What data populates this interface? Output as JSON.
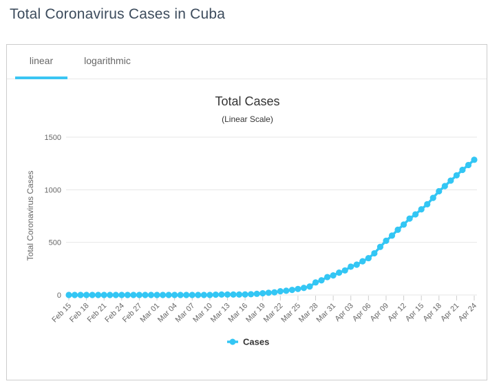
{
  "page": {
    "title": "Total Coronavirus Cases in Cuba"
  },
  "toolbar": {
    "tabs": [
      {
        "label": "linear",
        "active": true
      },
      {
        "label": "logarithmic",
        "active": false
      }
    ]
  },
  "colors": {
    "accent_cyan": "#3bc5f3",
    "series": "#33c6f4",
    "gridline": "#e6e6e6",
    "axis_text": "#666666",
    "title_text": "#3c4b5c"
  },
  "chart_data": {
    "type": "line",
    "title": "Total Cases",
    "subtitle": "(Linear Scale)",
    "xlabel": "",
    "ylabel": "Total Coronavirus Cases",
    "ylim": [
      0,
      1500
    ],
    "yticks": [
      0,
      500,
      1000,
      1500
    ],
    "grid": true,
    "legend_position": "bottom-center",
    "categories": [
      "Feb 15",
      "Feb 16",
      "Feb 17",
      "Feb 18",
      "Feb 19",
      "Feb 20",
      "Feb 21",
      "Feb 22",
      "Feb 23",
      "Feb 24",
      "Feb 25",
      "Feb 26",
      "Feb 27",
      "Feb 28",
      "Feb 29",
      "Mar 01",
      "Mar 02",
      "Mar 03",
      "Mar 04",
      "Mar 05",
      "Mar 06",
      "Mar 07",
      "Mar 08",
      "Mar 09",
      "Mar 10",
      "Mar 11",
      "Mar 12",
      "Mar 13",
      "Mar 14",
      "Mar 15",
      "Mar 16",
      "Mar 17",
      "Mar 18",
      "Mar 19",
      "Mar 20",
      "Mar 21",
      "Mar 22",
      "Mar 23",
      "Mar 24",
      "Mar 25",
      "Mar 26",
      "Mar 27",
      "Mar 28",
      "Mar 29",
      "Mar 30",
      "Mar 31",
      "Apr 01",
      "Apr 02",
      "Apr 03",
      "Apr 04",
      "Apr 05",
      "Apr 06",
      "Apr 07",
      "Apr 08",
      "Apr 09",
      "Apr 10",
      "Apr 11",
      "Apr 12",
      "Apr 13",
      "Apr 14",
      "Apr 15",
      "Apr 16",
      "Apr 17",
      "Apr 18",
      "Apr 19",
      "Apr 20",
      "Apr 21",
      "Apr 22",
      "Apr 23",
      "Apr 24"
    ],
    "xtick_labels": [
      "Feb 15",
      "Feb 18",
      "Feb 21",
      "Feb 24",
      "Feb 27",
      "Mar 01",
      "Mar 04",
      "Mar 07",
      "Mar 10",
      "Mar 13",
      "Mar 16",
      "Mar 19",
      "Mar 22",
      "Mar 25",
      "Mar 28",
      "Mar 31",
      "Apr 03",
      "Apr 06",
      "Apr 09",
      "Apr 12",
      "Apr 15",
      "Apr 18",
      "Apr 21",
      "Apr 24"
    ],
    "series": [
      {
        "name": "Cases",
        "color": "#33c6f4",
        "values": [
          0,
          0,
          0,
          0,
          0,
          0,
          0,
          0,
          0,
          0,
          0,
          0,
          0,
          0,
          0,
          0,
          0,
          0,
          0,
          0,
          0,
          0,
          0,
          0,
          0,
          3,
          4,
          4,
          4,
          4,
          5,
          7,
          11,
          16,
          21,
          25,
          35,
          40,
          48,
          57,
          67,
          80,
          119,
          139,
          170,
          186,
          212,
          233,
          269,
          288,
          320,
          350,
          396,
          457,
          515,
          564,
          620,
          669,
          726,
          766,
          814,
          862,
          923,
          986,
          1035,
          1087,
          1137,
          1189,
          1235,
          1285
        ]
      }
    ]
  }
}
